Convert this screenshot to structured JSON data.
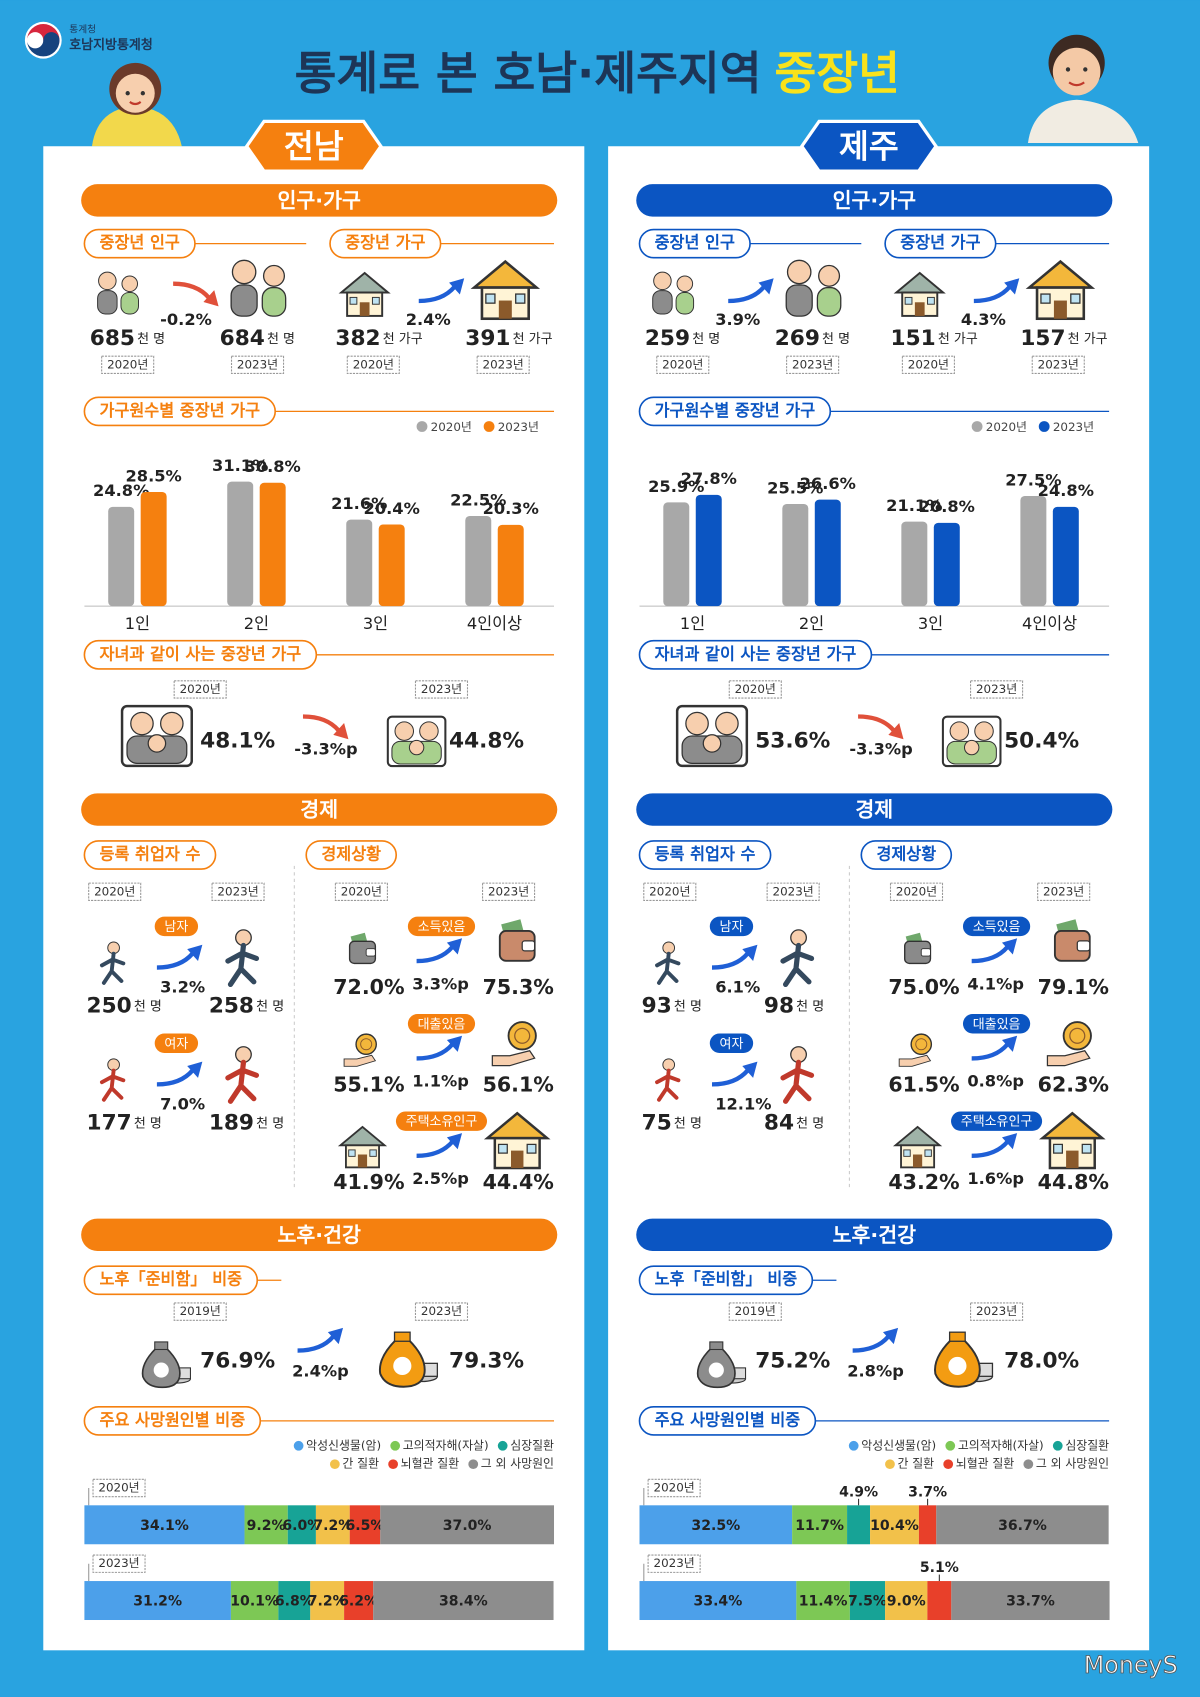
{
  "header": {
    "agency": "통계청",
    "office": "호남지방통계청",
    "title": "통계로 본 호남·제주지역",
    "title_highlight": "중장년"
  },
  "regions": [
    {
      "name": "전남",
      "color": "#f5800f",
      "population_households": {
        "title": "인구·가구",
        "items": [
          {
            "title": "중장년 인구",
            "from": {
              "value": "685",
              "unit": "천 명",
              "year": "2020년"
            },
            "change": "-0.2%",
            "to": {
              "value": "684",
              "unit": "천 명",
              "year": "2023년"
            }
          },
          {
            "title": "중장년 가구",
            "from": {
              "value": "382",
              "unit": "천 가구",
              "year": "2020년"
            },
            "change": "2.4%",
            "to": {
              "value": "391",
              "unit": "천 가구",
              "year": "2023년"
            }
          }
        ],
        "by_size": {
          "title": "가구원수별 중장년 가구",
          "categories": [
            "1인",
            "2인",
            "3인",
            "4인이상"
          ],
          "series": [
            {
              "name": "2020년",
              "color": "#a8a8a8",
              "values": [
                24.8,
                31.1,
                21.6,
                22.5
              ],
              "value_labels": [
                "24.8%",
                "31.1%",
                "21.6%",
                "22.5%"
              ]
            },
            {
              "name": "2023년",
              "color": "#f5800f",
              "values": [
                28.5,
                30.8,
                20.4,
                20.3
              ],
              "value_labels": [
                "28.5%",
                "30.8%",
                "20.4%",
                "20.3%"
              ]
            }
          ]
        },
        "with_children": {
          "title": "자녀과 같이 사는 중장년 가구",
          "from": {
            "year": "2020년",
            "value": "48.1%"
          },
          "change": "-3.3%p",
          "to": {
            "year": "2023년",
            "value": "44.8%"
          }
        }
      },
      "economy": {
        "title": "경제",
        "employed": {
          "title": "등록 취업자 수",
          "years": [
            "2020년",
            "2023년"
          ],
          "rows": [
            {
              "label": "남자",
              "from": {
                "value": "250",
                "unit": "천 명"
              },
              "change": "3.2%",
              "to": {
                "value": "258",
                "unit": "천 명"
              }
            },
            {
              "label": "여자",
              "from": {
                "value": "177",
                "unit": "천 명"
              },
              "change": "7.0%",
              "to": {
                "value": "189",
                "unit": "천 명"
              }
            }
          ]
        },
        "situation": {
          "title": "경제상황",
          "years": [
            "2020년",
            "2023년"
          ],
          "rows": [
            {
              "label": "소득있음",
              "from": "72.0%",
              "change": "3.3%p",
              "to": "75.3%"
            },
            {
              "label": "대출있음",
              "from": "55.1%",
              "change": "1.1%p",
              "to": "56.1%"
            },
            {
              "label": "주택소유인구",
              "from": "41.9%",
              "change": "2.5%p",
              "to": "44.4%"
            }
          ]
        }
      },
      "retirement_health": {
        "title": "노후·건강",
        "prepared": {
          "title": "노후「준비함」 비중",
          "from": {
            "year": "2019년",
            "value": "76.9%"
          },
          "change": "2.4%p",
          "to": {
            "year": "2023년",
            "value": "79.3%"
          }
        },
        "death_causes": {
          "title": "주요 사망원인별 비중",
          "causes": [
            {
              "name": "악성신생물(암)",
              "color": "#4ca0ea"
            },
            {
              "name": "고의적자해(자살)",
              "color": "#7dc855"
            },
            {
              "name": "심장질환",
              "color": "#17a396"
            },
            {
              "name": "간 질환",
              "color": "#f2c14a"
            },
            {
              "name": "뇌혈관 질환",
              "color": "#e8402a"
            },
            {
              "name": "그 외 사망원인",
              "color": "#8d8d8d"
            }
          ],
          "rows": [
            {
              "year": "2020년",
              "values": [
                34.1,
                9.2,
                6.0,
                7.2,
                6.5,
                37.0
              ],
              "value_labels": [
                "34.1%",
                "9.2%",
                "6.0%",
                "7.2%",
                "6.5%",
                "37.0%"
              ]
            },
            {
              "year": "2023년",
              "values": [
                31.2,
                10.1,
                6.8,
                7.2,
                6.2,
                38.4
              ],
              "value_labels": [
                "31.2%",
                "10.1%",
                "6.8%",
                "7.2%",
                "6.2%",
                "38.4%"
              ]
            }
          ]
        }
      }
    },
    {
      "name": "제주",
      "color": "#0b55c2",
      "population_households": {
        "title": "인구·가구",
        "items": [
          {
            "title": "중장년 인구",
            "from": {
              "value": "259",
              "unit": "천 명",
              "year": "2020년"
            },
            "change": "3.9%",
            "to": {
              "value": "269",
              "unit": "천 명",
              "year": "2023년"
            }
          },
          {
            "title": "중장년 가구",
            "from": {
              "value": "151",
              "unit": "천 가구",
              "year": "2020년"
            },
            "change": "4.3%",
            "to": {
              "value": "157",
              "unit": "천 가구",
              "year": "2023년"
            }
          }
        ],
        "by_size": {
          "title": "가구원수별 중장년 가구",
          "categories": [
            "1인",
            "2인",
            "3인",
            "4인이상"
          ],
          "series": [
            {
              "name": "2020년",
              "color": "#a8a8a8",
              "values": [
                25.9,
                25.5,
                21.1,
                27.5
              ],
              "value_labels": [
                "25.9%",
                "25.5%",
                "21.1%",
                "27.5%"
              ]
            },
            {
              "name": "2023년",
              "color": "#0b55c2",
              "values": [
                27.8,
                26.6,
                20.8,
                24.8
              ],
              "value_labels": [
                "27.8%",
                "26.6%",
                "20.8%",
                "24.8%"
              ]
            }
          ]
        },
        "with_children": {
          "title": "자녀과 같이 사는 중장년 가구",
          "from": {
            "year": "2020년",
            "value": "53.6%"
          },
          "change": "-3.3%p",
          "to": {
            "year": "2023년",
            "value": "50.4%"
          }
        }
      },
      "economy": {
        "title": "경제",
        "employed": {
          "title": "등록 취업자 수",
          "years": [
            "2020년",
            "2023년"
          ],
          "rows": [
            {
              "label": "남자",
              "from": {
                "value": "93",
                "unit": "천 명"
              },
              "change": "6.1%",
              "to": {
                "value": "98",
                "unit": "천 명"
              }
            },
            {
              "label": "여자",
              "from": {
                "value": "75",
                "unit": "천 명"
              },
              "change": "12.1%",
              "to": {
                "value": "84",
                "unit": "천 명"
              }
            }
          ]
        },
        "situation": {
          "title": "경제상황",
          "years": [
            "2020년",
            "2023년"
          ],
          "rows": [
            {
              "label": "소득있음",
              "from": "75.0%",
              "change": "4.1%p",
              "to": "79.1%"
            },
            {
              "label": "대출있음",
              "from": "61.5%",
              "change": "0.8%p",
              "to": "62.3%"
            },
            {
              "label": "주택소유인구",
              "from": "43.2%",
              "change": "1.6%p",
              "to": "44.8%"
            }
          ]
        }
      },
      "retirement_health": {
        "title": "노후·건강",
        "prepared": {
          "title": "노후「준비함」 비중",
          "from": {
            "year": "2019년",
            "value": "75.2%"
          },
          "change": "2.8%p",
          "to": {
            "year": "2023년",
            "value": "78.0%"
          }
        },
        "death_causes": {
          "title": "주요 사망원인별 비중",
          "causes": [
            {
              "name": "악성신생물(암)",
              "color": "#4ca0ea"
            },
            {
              "name": "고의적자해(자살)",
              "color": "#7dc855"
            },
            {
              "name": "심장질환",
              "color": "#17a396"
            },
            {
              "name": "간 질환",
              "color": "#f2c14a"
            },
            {
              "name": "뇌혈관 질환",
              "color": "#e8402a"
            },
            {
              "name": "그 외 사망원인",
              "color": "#8d8d8d"
            }
          ],
          "rows": [
            {
              "year": "2020년",
              "values": [
                32.5,
                11.7,
                4.9,
                10.4,
                3.7,
                36.7
              ],
              "value_labels": [
                "32.5%",
                "11.7%",
                "4.9%",
                "10.4%",
                "3.7%",
                "36.7%"
              ]
            },
            {
              "year": "2023년",
              "values": [
                33.4,
                11.4,
                7.5,
                9.0,
                5.1,
                33.7
              ],
              "value_labels": [
                "33.4%",
                "11.4%",
                "7.5%",
                "9.0%",
                "5.1%",
                "33.7%"
              ]
            }
          ]
        }
      }
    }
  ],
  "watermark": "MoneyS"
}
